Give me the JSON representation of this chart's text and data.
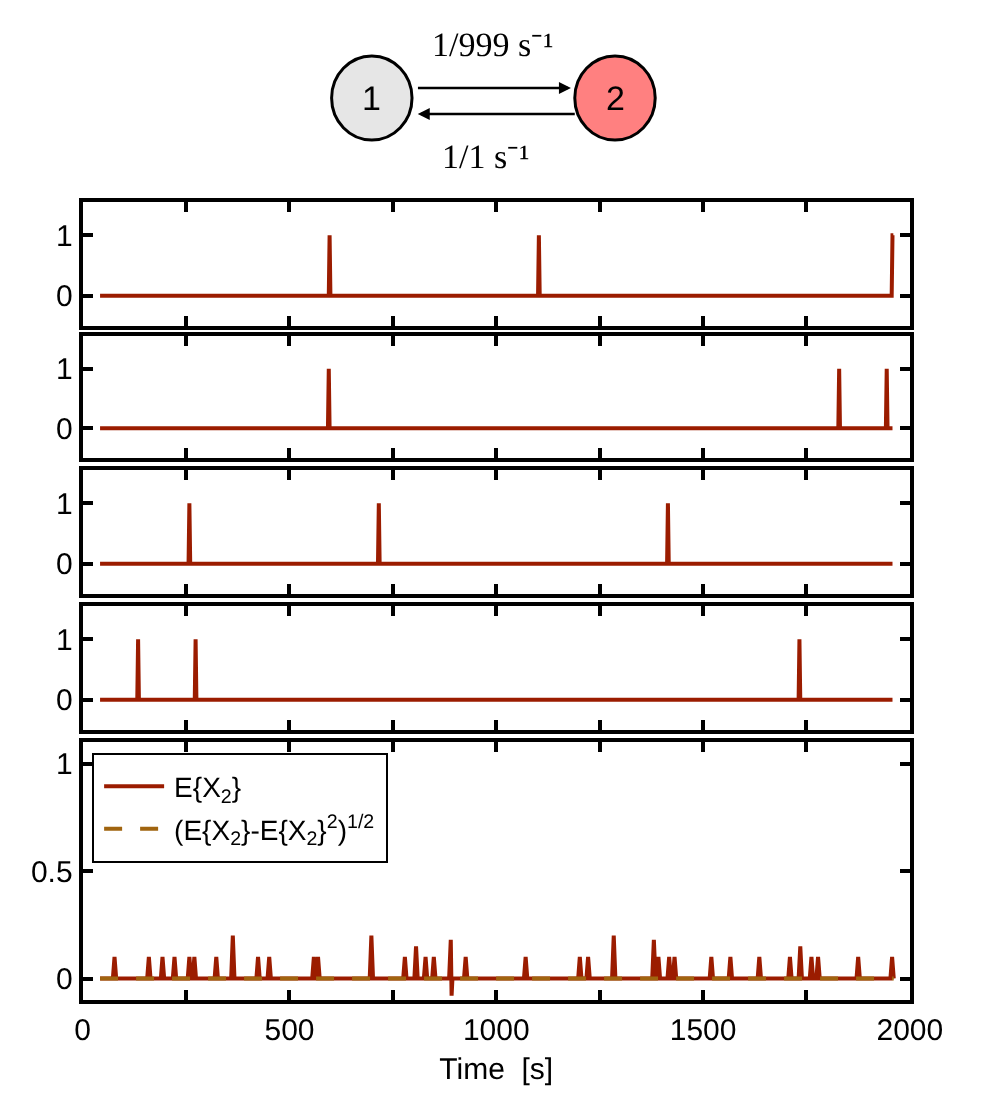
{
  "chart_data": [
    {
      "type": "line",
      "annotations": [
        "1",
        "2",
        "1/999 s⁻¹",
        "1/1 s⁻¹"
      ],
      "xlim": [
        0,
        2000
      ],
      "xticks": [
        {
          "value": 0,
          "label": null
        },
        {
          "value": 250,
          "label": null
        },
        {
          "value": 500,
          "label": null
        },
        {
          "value": 750,
          "label": null
        },
        {
          "value": 1000,
          "label": null
        },
        {
          "value": 1250,
          "label": null
        },
        {
          "value": 1500,
          "label": null
        },
        {
          "value": 1750,
          "label": null
        },
        {
          "value": 2000,
          "label": null
        }
      ],
      "ylim": [
        -0.5,
        1.55
      ],
      "yticks": [
        0,
        1
      ],
      "tick_labels": "y",
      "series": [
        {
          "color": "#9b1c00",
          "x": [
            42,
            595,
            597,
            599,
            1101,
            1103,
            1105,
            1956,
            1958,
            1960
          ],
          "values": [
            0,
            0,
            1,
            0,
            0,
            1,
            0,
            0,
            1,
            1
          ]
        }
      ]
    },
    {
      "type": "line",
      "xlim": [
        0,
        2000
      ],
      "xticks": [
        {
          "value": 0,
          "label": null
        },
        {
          "value": 250,
          "label": null
        },
        {
          "value": 500,
          "label": null
        },
        {
          "value": 750,
          "label": null
        },
        {
          "value": 1000,
          "label": null
        },
        {
          "value": 1250,
          "label": null
        },
        {
          "value": 1500,
          "label": null
        },
        {
          "value": 1750,
          "label": null
        },
        {
          "value": 2000,
          "label": null
        }
      ],
      "ylim": [
        -0.5,
        1.55
      ],
      "yticks": [
        0,
        1
      ],
      "tick_labels": "y",
      "series": [
        {
          "color": "#9b1c00",
          "x": [
            42,
            593,
            595,
            597,
            1827,
            1829,
            1831,
            1942,
            1944,
            1946,
            1958
          ],
          "values": [
            0,
            0,
            1,
            0,
            0,
            1,
            0,
            0,
            1,
            0,
            0
          ]
        }
      ]
    },
    {
      "type": "line",
      "xlim": [
        0,
        2000
      ],
      "xticks": [
        {
          "value": 0,
          "label": null
        },
        {
          "value": 250,
          "label": null
        },
        {
          "value": 500,
          "label": null
        },
        {
          "value": 750,
          "label": null
        },
        {
          "value": 1000,
          "label": null
        },
        {
          "value": 1250,
          "label": null
        },
        {
          "value": 1500,
          "label": null
        },
        {
          "value": 1750,
          "label": null
        },
        {
          "value": 2000,
          "label": null
        }
      ],
      "ylim": [
        -0.5,
        1.55
      ],
      "yticks": [
        0,
        1
      ],
      "tick_labels": "y",
      "series": [
        {
          "color": "#9b1c00",
          "x": [
            42,
            256,
            258,
            260,
            714,
            716,
            718,
            1413,
            1415,
            1417,
            1958
          ],
          "values": [
            0,
            0,
            1,
            0,
            0,
            1,
            0,
            0,
            1,
            0,
            0
          ]
        }
      ]
    },
    {
      "type": "line",
      "xlim": [
        0,
        2000
      ],
      "xticks": [
        {
          "value": 0,
          "label": null
        },
        {
          "value": 250,
          "label": null
        },
        {
          "value": 500,
          "label": null
        },
        {
          "value": 750,
          "label": null
        },
        {
          "value": 1000,
          "label": null
        },
        {
          "value": 1250,
          "label": null
        },
        {
          "value": 1500,
          "label": null
        },
        {
          "value": 1750,
          "label": null
        },
        {
          "value": 2000,
          "label": null
        }
      ],
      "ylim": [
        -0.5,
        1.55
      ],
      "yticks": [
        0,
        1
      ],
      "tick_labels": "y",
      "series": [
        {
          "color": "#9b1c00",
          "x": [
            42,
            132,
            134,
            136,
            271,
            273,
            275,
            1731,
            1733,
            1735,
            1958
          ],
          "values": [
            0,
            0,
            1,
            0,
            0,
            1,
            0,
            0,
            1,
            0,
            0
          ]
        }
      ]
    },
    {
      "type": "line",
      "xlabel": "Time  [s]",
      "xlim": [
        0,
        2000
      ],
      "xticks": [
        0,
        {
          "value": 250,
          "label": null
        },
        500,
        {
          "value": 750,
          "label": null
        },
        1000,
        {
          "value": 1250,
          "label": null
        },
        1500,
        {
          "value": 1750,
          "label": null
        },
        2000
      ],
      "ylim": [
        -0.1,
        1.1
      ],
      "yticks": [
        0,
        0.5,
        1
      ],
      "legend": "top left",
      "series": [
        {
          "name": "E{X$_{2}$}",
          "color": "#9b1c00",
          "line_style": "solid",
          "x": [
            42,
            73,
            77,
            81,
            156,
            160,
            164,
            189,
            193,
            197,
            218,
            222,
            226,
            254,
            258,
            262,
            266,
            270,
            274,
            319,
            323,
            327,
            359,
            363,
            367,
            420,
            424,
            428,
            447,
            451,
            455,
            555,
            559,
            563,
            565,
            569,
            573,
            694,
            698,
            702,
            775,
            779,
            783,
            802,
            806,
            810,
            825,
            829,
            833,
            845,
            849,
            853,
            886,
            890,
            892,
            894,
            922,
            926,
            930,
            1067,
            1071,
            1075,
            1198,
            1202,
            1206,
            1218,
            1222,
            1226,
            1280,
            1284,
            1288,
            1377,
            1381,
            1385,
            1388,
            1392,
            1396,
            1414,
            1418,
            1422,
            1427,
            1431,
            1435,
            1516,
            1520,
            1524,
            1562,
            1566,
            1570,
            1632,
            1636,
            1640,
            1706,
            1710,
            1714,
            1731,
            1735,
            1739,
            1758,
            1762,
            1766,
            1774,
            1778,
            1782,
            1871,
            1875,
            1879,
            1953,
            1957,
            1961
          ],
          "values": [
            0,
            0,
            0.1,
            0,
            0,
            0.1,
            0,
            0,
            0.1,
            0,
            0,
            0.1,
            0,
            0,
            0.1,
            0,
            0,
            0.1,
            0,
            0,
            0.1,
            0,
            0,
            0.2,
            0,
            0,
            0.1,
            0,
            0,
            0.1,
            0,
            0,
            0.1,
            0,
            0,
            0.1,
            0,
            0,
            0.2,
            0,
            0,
            0.1,
            0,
            0,
            0.15,
            0,
            0,
            0.1,
            0,
            0,
            0.1,
            0,
            0,
            0.18,
            -0.08,
            0,
            0,
            0.1,
            0,
            0,
            0.1,
            0,
            0,
            0.1,
            0,
            0,
            0.1,
            0,
            0,
            0.2,
            0,
            0,
            0.18,
            0,
            0,
            0.1,
            0,
            0,
            0.1,
            0,
            0,
            0.1,
            0,
            0,
            0.1,
            0,
            0,
            0.1,
            0,
            0,
            0.1,
            0,
            0,
            0.1,
            0,
            0,
            0.15,
            0,
            0,
            0.1,
            0,
            0,
            0.1,
            0,
            0,
            0.1,
            0,
            0,
            0.1,
            0
          ]
        },
        {
          "name": "(E{X$_{2}$}-E{X$_{2}$}$^{2}$)$^{1/2}$",
          "color": "#a0640f",
          "line_style": "dashed",
          "x": [
            42,
            1961
          ],
          "values": [
            0,
            0
          ]
        }
      ]
    }
  ]
}
